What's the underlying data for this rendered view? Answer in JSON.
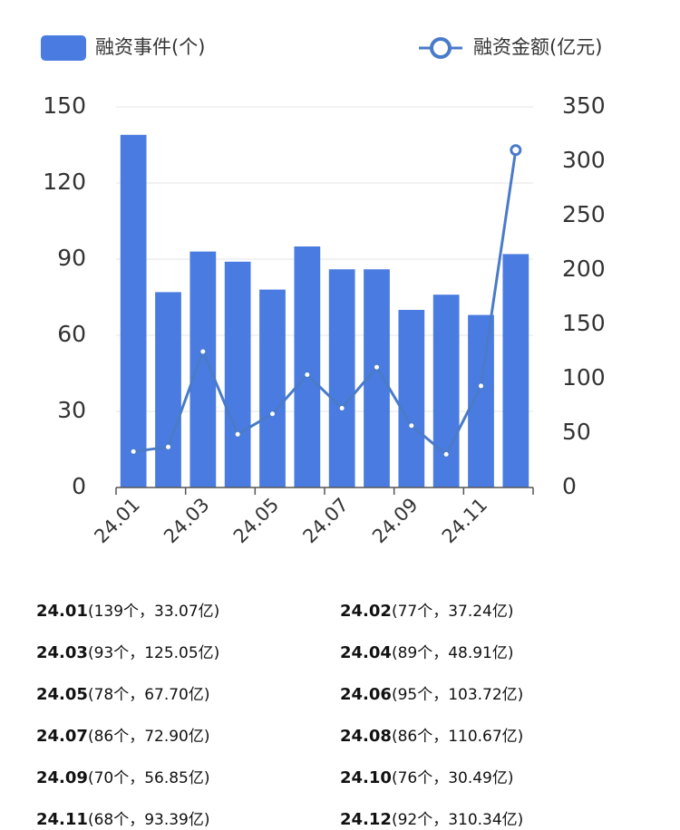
{
  "chart_data": {
    "type": "bar_line",
    "categories": [
      "24.01",
      null,
      "24.03",
      null,
      "24.05",
      null,
      "24.07",
      null,
      "24.09",
      null,
      "24.11",
      null
    ],
    "series": [
      {
        "name": "融资事件(个)",
        "color": "#4a7be0",
        "type": "bar",
        "values": [
          139,
          77,
          93,
          89,
          78,
          95,
          86,
          86,
          70,
          76,
          68,
          92
        ]
      },
      {
        "name": "融资金额(亿元)",
        "color": "#4a7bc8",
        "type": "line",
        "axis": "y2",
        "values": [
          33.07,
          37.24,
          125.05,
          48.91,
          67.7,
          103.72,
          72.9,
          110.67,
          56.85,
          30.49,
          93.39,
          310.34
        ]
      }
    ],
    "ylim": [
      0,
      150
    ],
    "yticks": [
      0,
      30,
      60,
      90,
      120,
      150
    ],
    "y2lim": [
      0,
      350
    ],
    "y2ticks": [
      0,
      50,
      100,
      150,
      200,
      250,
      300,
      350
    ],
    "grid": true,
    "legend": "top"
  },
  "list": [
    {
      "period": "24.01",
      "detail": "(139个，33.07亿)"
    },
    {
      "period": "24.02",
      "detail": "(77个，37.24亿)"
    },
    {
      "period": "24.03",
      "detail": "(93个，125.05亿)"
    },
    {
      "period": "24.04",
      "detail": "(89个，48.91亿)"
    },
    {
      "period": "24.05",
      "detail": "(78个，67.70亿)"
    },
    {
      "period": "24.06",
      "detail": "(95个，103.72亿)"
    },
    {
      "period": "24.07",
      "detail": "(86个，72.90亿)"
    },
    {
      "period": "24.08",
      "detail": "(86个，110.67亿)"
    },
    {
      "period": "24.09",
      "detail": "(70个，56.85亿)"
    },
    {
      "period": "24.10",
      "detail": "(76个，30.49亿)"
    },
    {
      "period": "24.11",
      "detail": "(68个，93.39亿)"
    },
    {
      "period": "24.12",
      "detail": "(92个，310.34亿)"
    }
  ]
}
